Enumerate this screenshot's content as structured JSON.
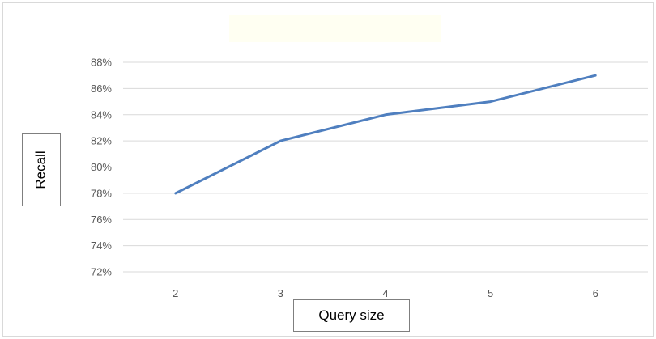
{
  "chart_data": {
    "type": "line",
    "title": "",
    "xlabel": "Query size",
    "ylabel": "Recall",
    "categories": [
      "2",
      "3",
      "4",
      "5",
      "6"
    ],
    "series": [
      {
        "values": [
          78,
          82,
          84,
          85,
          87
        ],
        "color": "#4f7fbf"
      }
    ],
    "ylim": [
      72,
      88
    ],
    "ystep": 2,
    "ytick_suffix": "%",
    "grid": true,
    "legend": "none",
    "gridline_color": "#d9d9d9",
    "tick_color": "#595959"
  }
}
